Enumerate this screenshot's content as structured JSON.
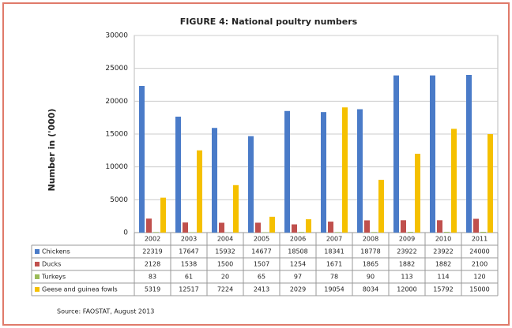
{
  "chart_data": {
    "type": "bar",
    "title": "FIGURE 4: National poultry numbers",
    "y_label": "Number in ('000)",
    "source": "Source: FAOSTAT, August 2013",
    "categories": [
      "2002",
      "2003",
      "2004",
      "2005",
      "2006",
      "2007",
      "2008",
      "2009",
      "2010",
      "2011"
    ],
    "series": [
      {
        "name": "Chickens",
        "color": "#4a7bc8",
        "values": [
          22319,
          17647,
          15932,
          14677,
          18508,
          18341,
          18778,
          23922,
          23922,
          24000
        ]
      },
      {
        "name": "Ducks",
        "color": "#c0504d",
        "values": [
          2128,
          1538,
          1500,
          1507,
          1254,
          1671,
          1865,
          1882,
          1882,
          2100
        ]
      },
      {
        "name": "Turkeys",
        "color": "#9bbb59",
        "values": [
          83,
          61,
          20,
          65,
          97,
          78,
          90,
          113,
          114,
          120
        ]
      },
      {
        "name": "Geese and guinea fowls",
        "color": "#f5c000",
        "values": [
          5319,
          12517,
          7224,
          2413,
          2029,
          19054,
          8034,
          12000,
          15792,
          15000
        ]
      }
    ],
    "ylim": [
      0,
      30000
    ],
    "yticks": [
      0,
      5000,
      10000,
      15000,
      20000,
      25000,
      30000
    ],
    "grid": true
  }
}
